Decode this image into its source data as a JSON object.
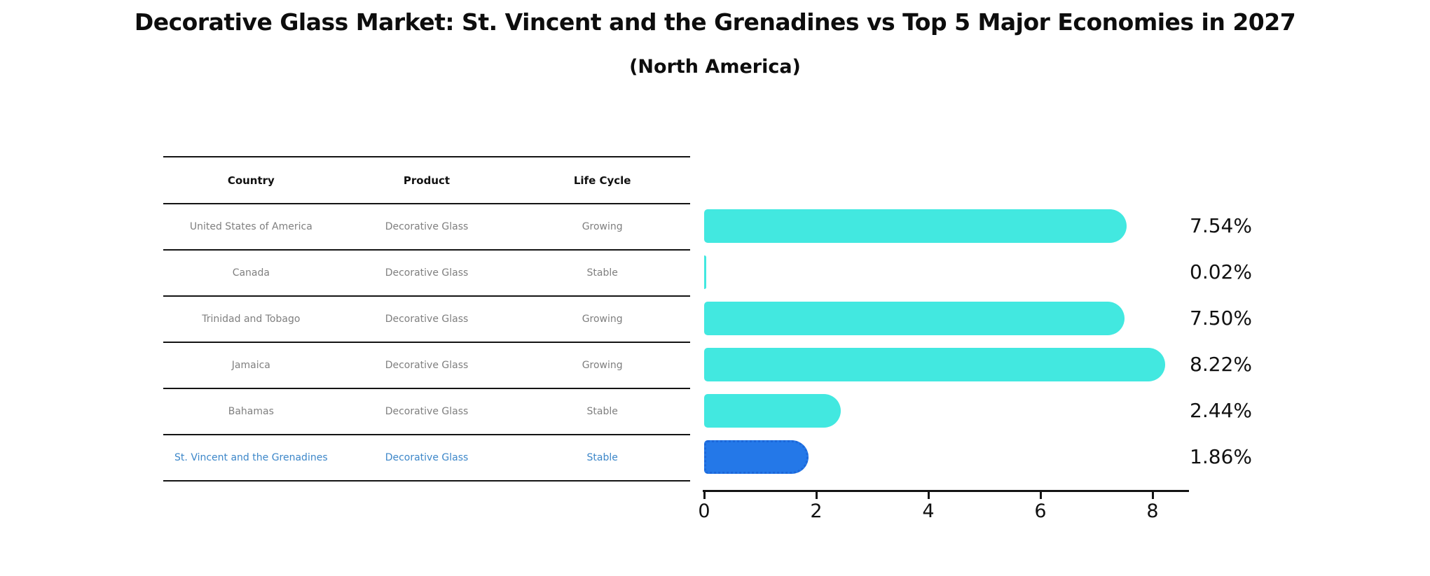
{
  "chart_data": {
    "type": "bar",
    "orientation": "horizontal",
    "title": "Decorative Glass Market: St. Vincent and the Grenadines vs Top 5 Major Economies in 2027",
    "subtitle": "(North America)",
    "categories": [
      "United States of America",
      "Canada",
      "Trinidad and Tobago",
      "Jamaica",
      "Bahamas",
      "St. Vincent and the Grenadines"
    ],
    "values": [
      7.54,
      0.02,
      7.5,
      8.22,
      2.44,
      1.86
    ],
    "value_labels": [
      "7.54%",
      "0.02%",
      "7.50%",
      "8.22%",
      "2.44%",
      "1.86%"
    ],
    "xlim": [
      0,
      8.7
    ],
    "x_ticks": [
      "0",
      "2",
      "4",
      "6",
      "8"
    ],
    "grid": false,
    "legend": false,
    "bar_color": "#42e8e0",
    "highlight_bar_color": "#2478e8",
    "highlight_bar_border": "#1c67d9",
    "highlight_index": 5
  },
  "table": {
    "headers": [
      "Country",
      "Product",
      "Life Cycle"
    ],
    "rows": [
      {
        "country": "United States of America",
        "product": "Decorative Glass",
        "life_cycle": "Growing"
      },
      {
        "country": "Canada",
        "product": "Decorative Glass",
        "life_cycle": "Stable"
      },
      {
        "country": "Trinidad and Tobago",
        "product": "Decorative Glass",
        "life_cycle": "Growing"
      },
      {
        "country": "Jamaica",
        "product": "Decorative Glass",
        "life_cycle": "Growing"
      },
      {
        "country": "Bahamas",
        "product": "Decorative Glass",
        "life_cycle": "Stable"
      },
      {
        "country": "St. Vincent and the Grenadines",
        "product": "Decorative Glass",
        "life_cycle": "Stable"
      }
    ],
    "row_text_color": "#7f7f7f",
    "highlight_text_color": "#3d87c9"
  }
}
